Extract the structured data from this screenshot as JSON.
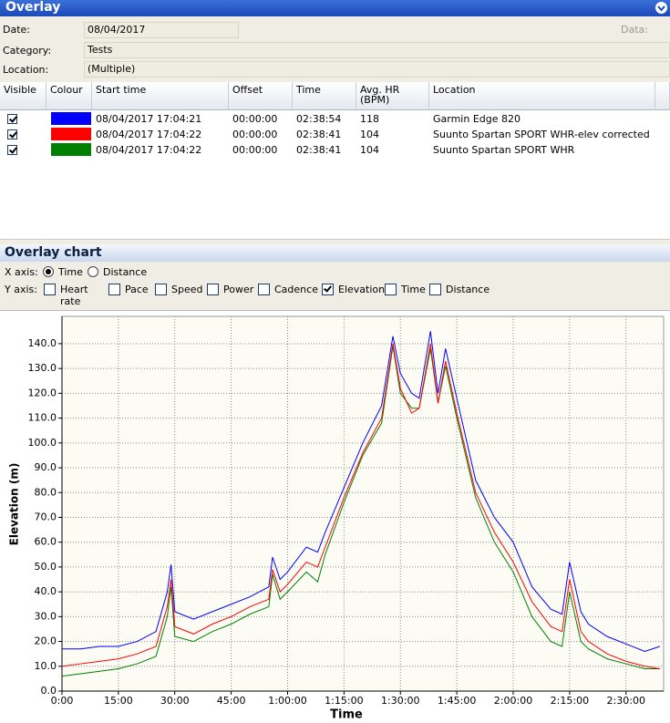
{
  "header": {
    "title": "Overlay"
  },
  "form": {
    "date_label": "Date:",
    "date": "08/04/2017",
    "data_label": "Data:",
    "category_label": "Category:",
    "category": "Tests",
    "location_label": "Location:",
    "location": "(Multiple)"
  },
  "table": {
    "columns": [
      "Visible",
      "Colour",
      "Start time",
      "Offset",
      "Time",
      "Avg. HR (BPM)",
      "Location"
    ],
    "visible": [
      true,
      true,
      true
    ],
    "rows": [
      [
        "08/04/2017 17:04:21",
        "00:00:00",
        "02:38:54",
        "118",
        "Garmin Edge 820"
      ],
      [
        "08/04/2017 17:04:22",
        "00:00:00",
        "02:38:41",
        "104",
        "Suunto Spartan SPORT WHR-elev corrected"
      ],
      [
        "08/04/2017 17:04:22",
        "00:00:00",
        "02:38:41",
        "104",
        "Suunto Spartan SPORT WHR"
      ]
    ]
  },
  "chart_panel": {
    "title": "Overlay chart",
    "x_axis_label": "X axis:",
    "x_options": [
      "Time",
      "Distance"
    ],
    "x_selected": 0,
    "y_axis_label": "Y axis:",
    "y_options": [
      "Heart rate",
      "Pace",
      "Speed",
      "Power",
      "Cadence",
      "Elevation",
      "Time",
      "Distance"
    ],
    "y_checked": [
      false,
      false,
      false,
      false,
      false,
      true,
      false,
      false
    ]
  },
  "chart_data": {
    "type": "line",
    "x_label": "Time",
    "y_label": "Elevation (m)",
    "grid": true,
    "xlim": [
      0,
      160
    ],
    "ylim": [
      0,
      151
    ],
    "xticks": [
      {
        "value": 0,
        "label": "0:00"
      },
      {
        "value": 15,
        "label": "15:00"
      },
      {
        "value": 30,
        "label": "30:00"
      },
      {
        "value": 45,
        "label": "45:00"
      },
      {
        "value": 60,
        "label": "1:00:00"
      },
      {
        "value": 75,
        "label": "1:15:00"
      },
      {
        "value": 90,
        "label": "1:30:00"
      },
      {
        "value": 105,
        "label": "1:45:00"
      },
      {
        "value": 120,
        "label": "2:00:00"
      },
      {
        "value": 135,
        "label": "2:15:00"
      },
      {
        "value": 150,
        "label": "2:30:00"
      }
    ],
    "yticks": [
      {
        "value": 0,
        "label": "0.0"
      },
      {
        "value": 10,
        "label": "10.0"
      },
      {
        "value": 20,
        "label": "20.0"
      },
      {
        "value": 30,
        "label": "30.0"
      },
      {
        "value": 40,
        "label": "40.0"
      },
      {
        "value": 50,
        "label": "50.0"
      },
      {
        "value": 60,
        "label": "60.0"
      },
      {
        "value": 70,
        "label": "70.0"
      },
      {
        "value": 80,
        "label": "80.0"
      },
      {
        "value": 90,
        "label": "90.0"
      },
      {
        "value": 100,
        "label": "100.0"
      },
      {
        "value": 110,
        "label": "110.0"
      },
      {
        "value": 120,
        "label": "120.0"
      },
      {
        "value": 130,
        "label": "130.0"
      },
      {
        "value": 140,
        "label": "140.0"
      }
    ],
    "x": [
      0,
      5,
      10,
      15,
      20,
      25,
      28,
      29,
      30,
      35,
      40,
      45,
      50,
      55,
      56,
      58,
      60,
      65,
      68,
      70,
      75,
      80,
      85,
      88,
      90,
      93,
      95,
      98,
      100,
      102,
      105,
      110,
      115,
      120,
      125,
      130,
      133,
      135,
      138,
      140,
      145,
      150,
      155,
      159
    ],
    "series": [
      {
        "color": "#0000ff",
        "values": [
          17,
          17,
          18,
          18,
          20,
          24,
          40,
          51,
          32,
          29,
          32,
          35,
          38,
          42,
          54,
          45,
          48,
          58,
          56,
          64,
          82,
          100,
          115,
          143,
          128,
          120,
          118,
          145,
          120,
          138,
          118,
          85,
          70,
          60,
          42,
          33,
          31,
          52,
          32,
          27,
          22,
          19,
          16,
          18
        ]
      },
      {
        "color": "#ff0000",
        "values": [
          10,
          11,
          12,
          13,
          15,
          18,
          34,
          45,
          26,
          23,
          27,
          30,
          34,
          37,
          49,
          40,
          43,
          52,
          50,
          58,
          78,
          96,
          110,
          140,
          122,
          112,
          114,
          140,
          116,
          133,
          112,
          80,
          64,
          52,
          36,
          26,
          24,
          45,
          24,
          20,
          15,
          12,
          10,
          9
        ]
      },
      {
        "color": "#008000",
        "values": [
          6,
          7,
          8,
          9,
          11,
          14,
          30,
          42,
          22,
          20,
          24,
          27,
          31,
          34,
          47,
          37,
          40,
          48,
          44,
          55,
          76,
          95,
          108,
          139,
          120,
          114,
          114,
          138,
          116,
          131,
          110,
          78,
          60,
          48,
          30,
          20,
          18,
          40,
          20,
          17,
          13,
          11,
          9,
          9
        ]
      }
    ]
  }
}
